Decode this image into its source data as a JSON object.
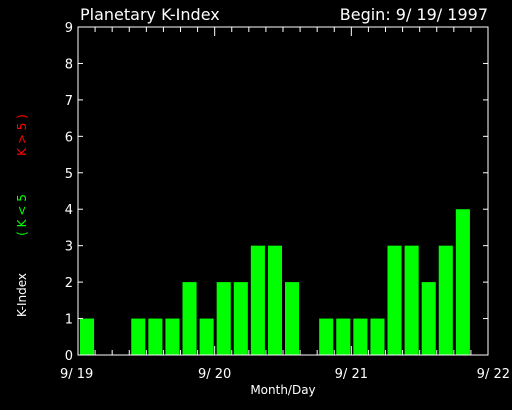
{
  "chart_data": {
    "type": "bar",
    "title": "Planetary K-Index",
    "subtitle": "Begin: 9/ 19/ 1997",
    "xlabel": "Month/Day",
    "ylabel": "K-Index",
    "ylabel_green": "( K < 5",
    "ylabel_red": "K > 5 )",
    "ylim": [
      0,
      9
    ],
    "yticks": [
      "0",
      "1",
      "2",
      "3",
      "4",
      "5",
      "6",
      "7",
      "8",
      "9"
    ],
    "xticks": [
      "9/ 19",
      "9/ 20",
      "9/ 21",
      "9/ 22"
    ],
    "bar_hours": 3,
    "days": 3,
    "values": [
      1,
      0,
      0,
      1,
      1,
      1,
      2,
      1,
      2,
      2,
      3,
      3,
      2,
      0,
      1,
      1,
      1,
      1,
      3,
      3,
      2,
      3,
      4,
      0
    ],
    "colors": {
      "low": "#00ff00",
      "high": "#ff0000",
      "axis": "#ffffff",
      "background": "#000000"
    },
    "grid": false
  }
}
